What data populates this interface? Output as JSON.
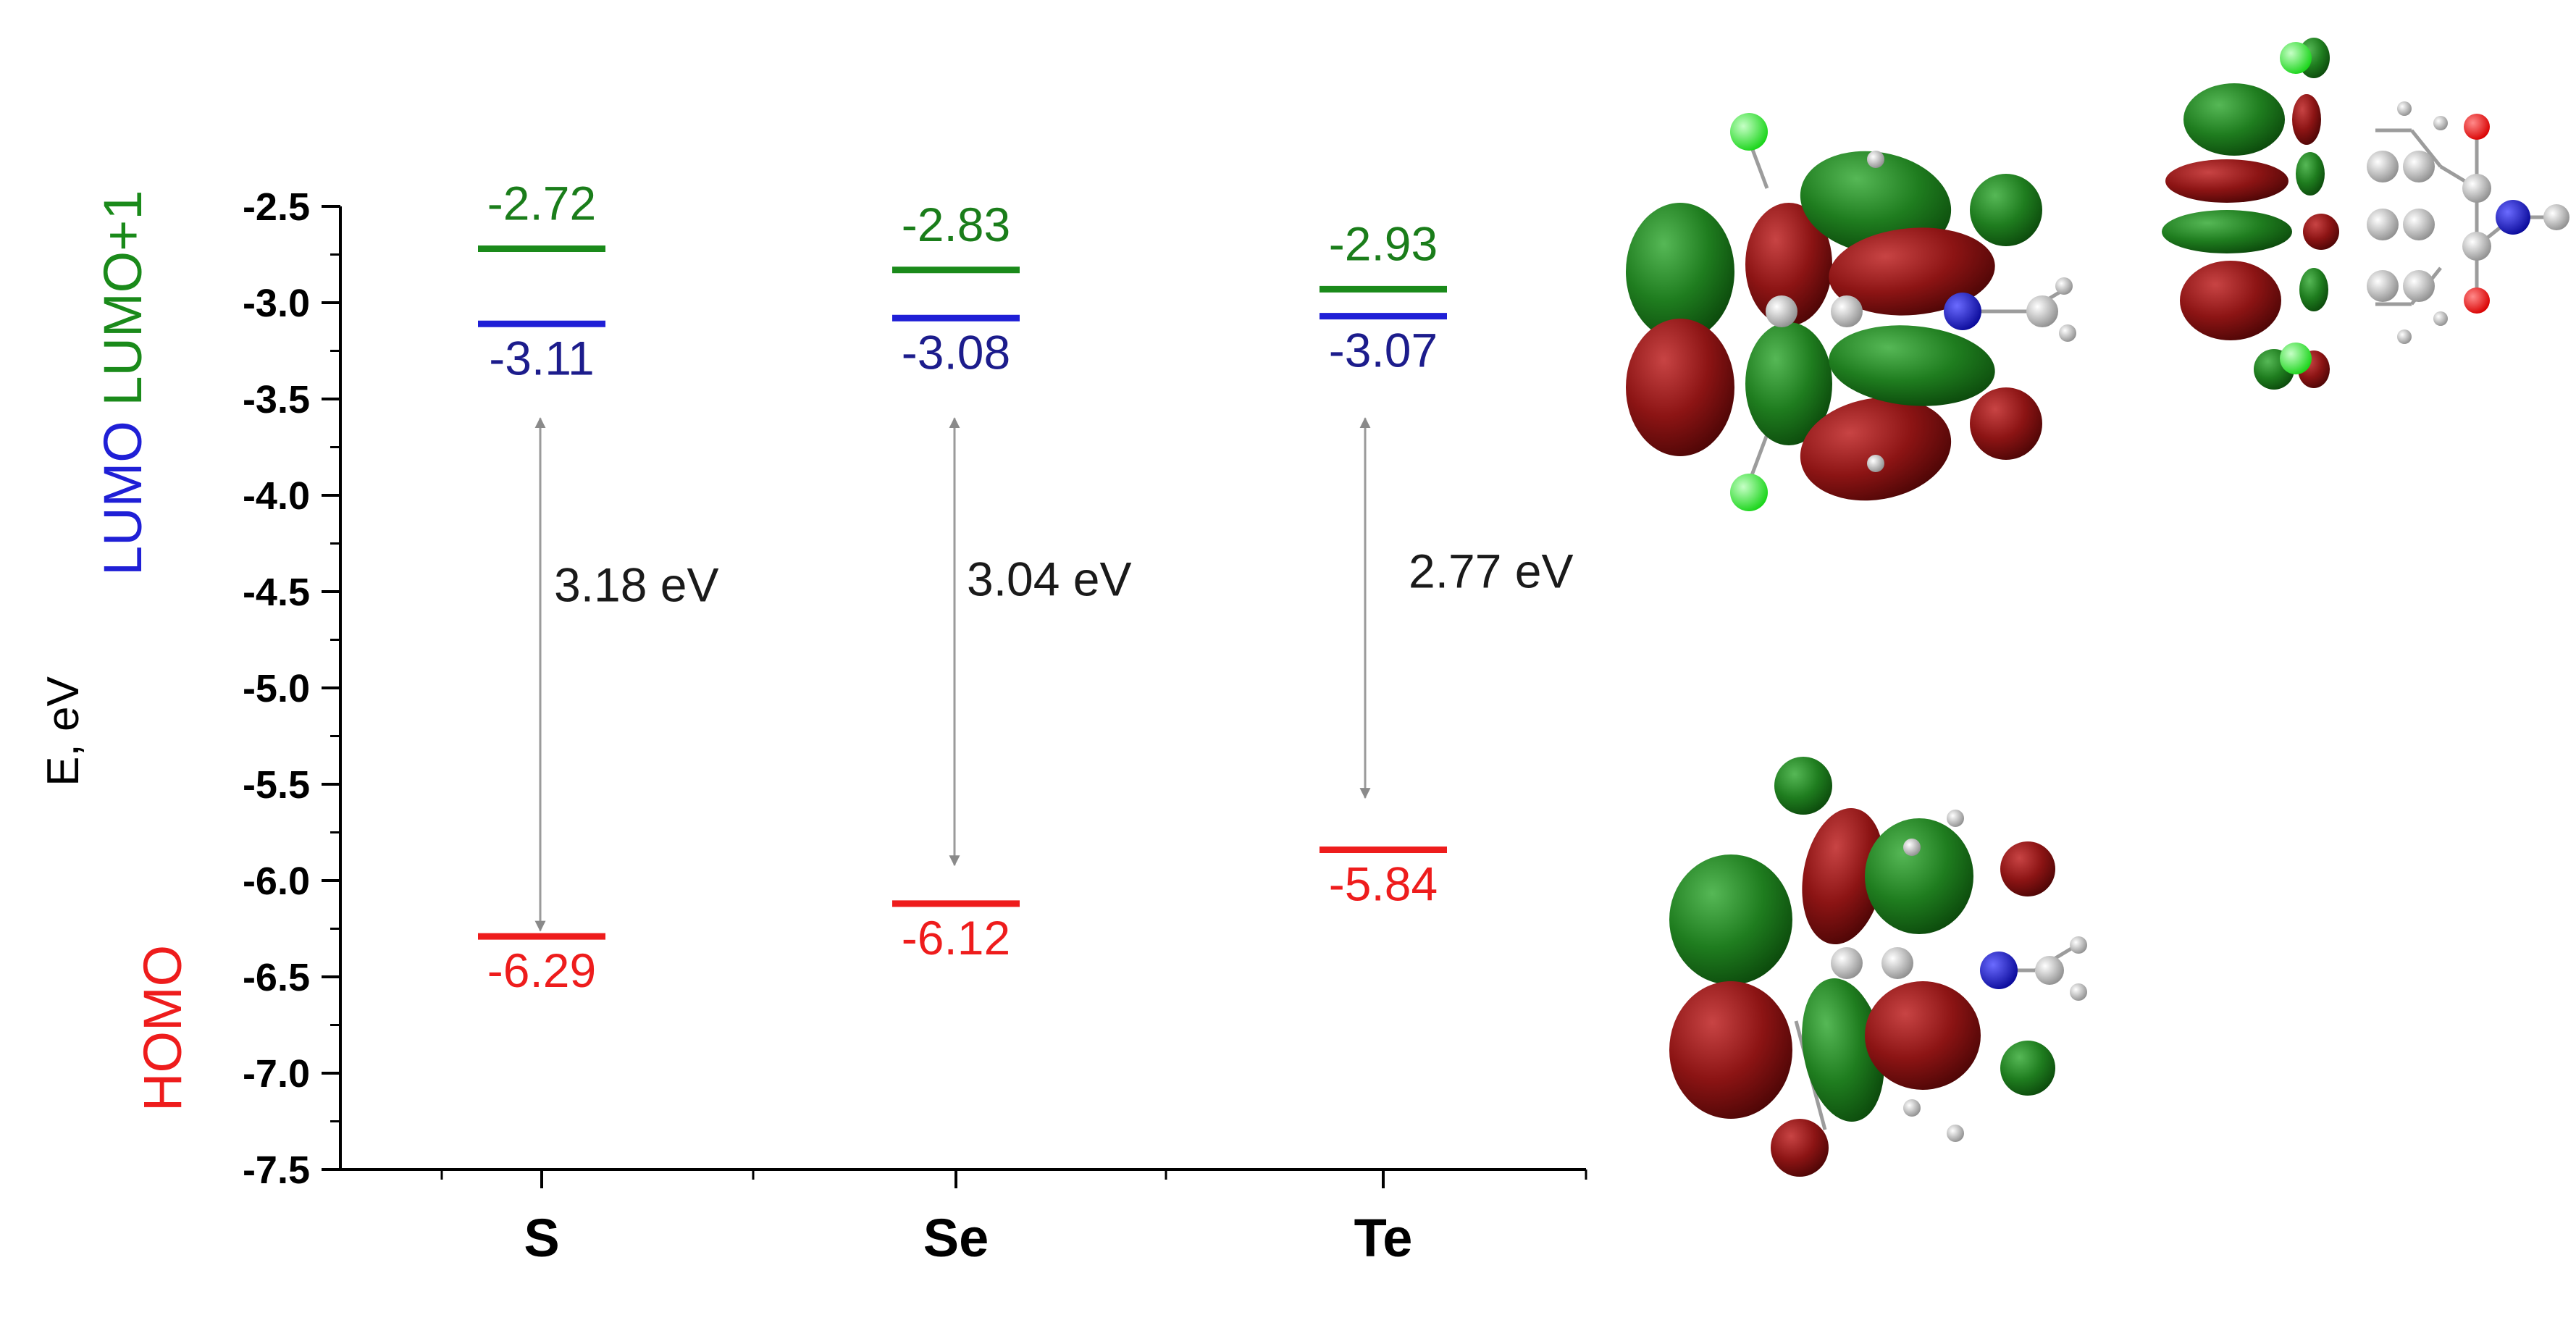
{
  "chart_data": {
    "type": "energy-level-diagram",
    "ylabel": "E, eV",
    "ylim": [
      -7.5,
      -2.5
    ],
    "yticks": [
      -2.5,
      -3.0,
      -3.5,
      -4.0,
      -4.5,
      -5.0,
      -5.5,
      -6.0,
      -6.5,
      -7.0,
      -7.5
    ],
    "ytick_labels": [
      "-2.5",
      "-3.0",
      "-3.5",
      "-4.0",
      "-4.5",
      "-5.0",
      "-5.5",
      "-6.0",
      "-6.5",
      "-7.0",
      "-7.5"
    ],
    "grid": false,
    "categories": [
      "S",
      "Se",
      "Te"
    ],
    "series": [
      {
        "name": "LUMO+1",
        "color": "#1a8a1a",
        "label_color": "#1a7d1a",
        "values": [
          -2.72,
          -2.83,
          -2.93
        ],
        "labels": [
          "-2.72",
          "-2.83",
          "-2.93"
        ]
      },
      {
        "name": "LUMO",
        "color": "#1f1fd6",
        "label_color": "#1c1c8c",
        "values": [
          -3.11,
          -3.08,
          -3.07
        ],
        "labels": [
          "-3.11",
          "-3.08",
          "-3.07"
        ]
      },
      {
        "name": "HOMO",
        "color": "#ee1c1c",
        "label_color": "#ee1c1c",
        "values": [
          -6.29,
          -6.12,
          -5.84
        ],
        "labels": [
          "-6.29",
          "-6.12",
          "-5.84"
        ]
      }
    ],
    "gaps": [
      {
        "category": "S",
        "from": -3.6,
        "to": -6.29,
        "label": "3.18 eV"
      },
      {
        "category": "Se",
        "from": -3.6,
        "to": -5.95,
        "label": "3.04 eV"
      },
      {
        "category": "Te",
        "from": -3.6,
        "to": -5.6,
        "label": "2.77 eV"
      }
    ],
    "legend": {
      "placement": "left-vertical",
      "items": [
        "LUMO",
        "LUMO+1",
        "HOMO"
      ]
    }
  },
  "orbital_images": [
    {
      "name": "lumo-orbital",
      "lobe_colors": [
        "#1e7a1e",
        "#8b1212"
      ]
    },
    {
      "name": "lumo-plus-1-orbital",
      "lobe_colors": [
        "#1e7a1e",
        "#8b1212"
      ]
    },
    {
      "name": "homo-orbital",
      "lobe_colors": [
        "#1e7a1e",
        "#8b1212"
      ]
    }
  ]
}
